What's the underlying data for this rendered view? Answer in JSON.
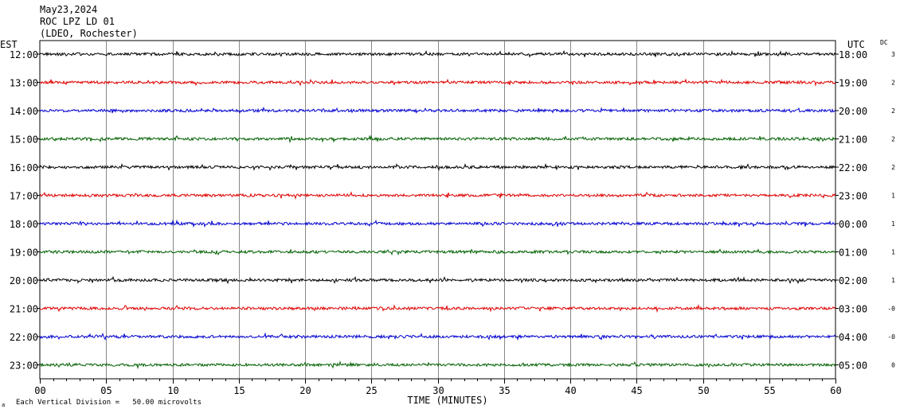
{
  "header": {
    "date": "May23,2024",
    "station": "ROC LPZ LD 01",
    "network": "(LDEO, Rochester)"
  },
  "axes": {
    "left_zone": "EST",
    "right_zone": "UTC",
    "dc_header": "DC",
    "xlabel": "TIME (MINUTES)",
    "footer_note": "Each Vertical Division =   50.00 microvolts",
    "footer_mark": "a"
  },
  "colors": {
    "trace_cycle": [
      "#000000",
      "#e00000",
      "#0000d0",
      "#006000"
    ],
    "grid": "#000000"
  },
  "chart_data": {
    "type": "line",
    "title": "ROC LPZ LD 01",
    "xlabel": "TIME (MINUTES)",
    "ylabel": "",
    "xlim": [
      0,
      60
    ],
    "x_ticks": [
      "00",
      "05",
      "10",
      "15",
      "20",
      "25",
      "30",
      "35",
      "40",
      "45",
      "50",
      "55",
      "60"
    ],
    "grid": true,
    "rows": [
      {
        "est": "12:00",
        "utc": "18:00",
        "dc": "3"
      },
      {
        "est": "13:00",
        "utc": "19:00",
        "dc": "2"
      },
      {
        "est": "14:00",
        "utc": "20:00",
        "dc": "2"
      },
      {
        "est": "15:00",
        "utc": "21:00",
        "dc": "2"
      },
      {
        "est": "16:00",
        "utc": "22:00",
        "dc": "2"
      },
      {
        "est": "17:00",
        "utc": "23:00",
        "dc": "1"
      },
      {
        "est": "18:00",
        "utc": "00:00",
        "dc": "1"
      },
      {
        "est": "19:00",
        "utc": "01:00",
        "dc": "1"
      },
      {
        "est": "20:00",
        "utc": "02:00",
        "dc": "1"
      },
      {
        "est": "21:00",
        "utc": "03:00",
        "dc": "-0"
      },
      {
        "est": "22:00",
        "utc": "04:00",
        "dc": "-0"
      },
      {
        "est": "23:00",
        "utc": "05:00",
        "dc": "0"
      }
    ]
  }
}
